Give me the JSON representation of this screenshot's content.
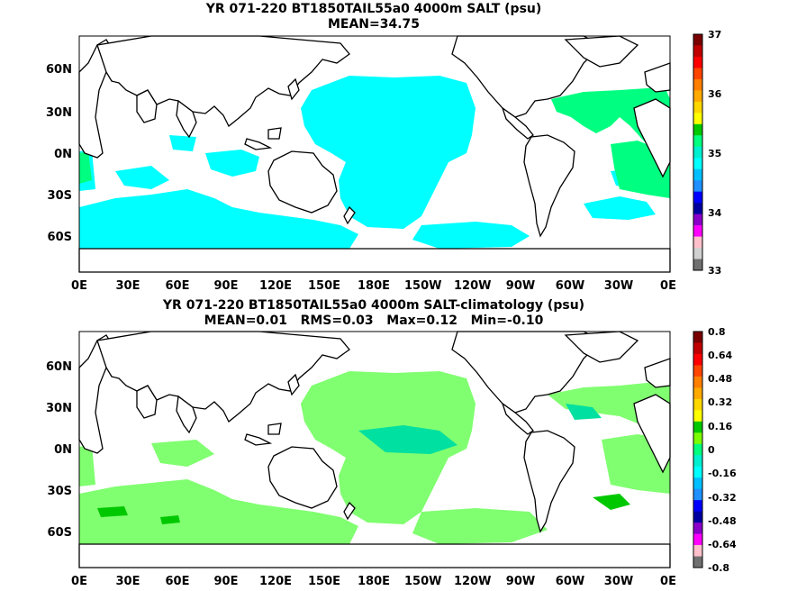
{
  "panels": [
    {
      "title_line1": "YR 071-220 BT1850TAIL55a0 4000m SALT (psu)",
      "title_line2": "MEAN=34.75",
      "colorbar_labels": [
        "37",
        "36",
        "35",
        "34",
        "33"
      ],
      "colorbar_colors": [
        "#7a0000",
        "#c00000",
        "#ff0000",
        "#ff4500",
        "#ff7f00",
        "#ffaa00",
        "#ffd700",
        "#ffff00",
        "#00c800",
        "#00ff7f",
        "#00f0d0",
        "#00ffff",
        "#00bfff",
        "#1e90ff",
        "#0000ff",
        "#0000a0",
        "#8a00c8",
        "#ff00ff",
        "#ffc0cb",
        "#d0d0d0",
        "#707070"
      ]
    },
    {
      "title_line1": "YR 071-220 BT1850TAIL55a0 4000m SALT-climatology (psu)",
      "title_line2": "MEAN=0.01   RMS=0.03   Max=0.12   Min=-0.10",
      "colorbar_labels": [
        "0.8",
        "0.64",
        "0.48",
        "0.32",
        "0.16",
        "0",
        "-0.16",
        "-0.32",
        "-0.48",
        "-0.64",
        "-0.8"
      ],
      "colorbar_colors": [
        "#7a0000",
        "#c00000",
        "#ff0000",
        "#ff4500",
        "#ff7f00",
        "#ffaa00",
        "#ffd700",
        "#ffff00",
        "#00c800",
        "#7cfc00",
        "#00ff7f",
        "#00f0d0",
        "#00ffff",
        "#00bfff",
        "#1e90ff",
        "#0000ff",
        "#0000a0",
        "#8a00c8",
        "#ff00ff",
        "#ffc0cb",
        "#707070"
      ]
    }
  ],
  "lat_labels": [
    "60N",
    "30N",
    "0N",
    "30S",
    "60S"
  ],
  "lon_labels": [
    "0E",
    "30E",
    "60E",
    "90E",
    "120E",
    "150E",
    "180E",
    "150W",
    "120W",
    "90W",
    "60W",
    "30W",
    "0E"
  ],
  "colors": {
    "cyan_field": "#00ffff",
    "green_field": "#00ff80",
    "lightgreen_field": "#80ff70",
    "ocean": "#ffffff",
    "land_outline": "#000000"
  }
}
